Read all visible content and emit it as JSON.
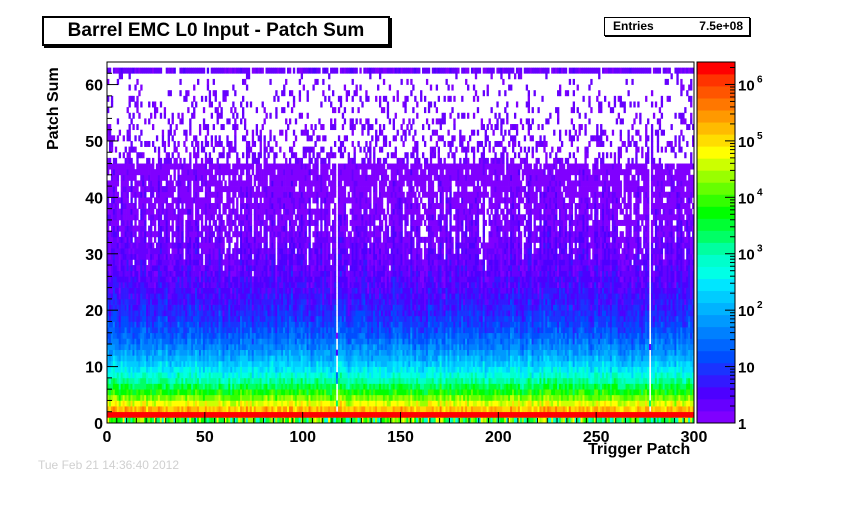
{
  "title": "Barrel EMC L0 Input - Patch Sum",
  "stats": {
    "label": "Entries",
    "value": "7.5e+08"
  },
  "footer_text": "Tue Feb 21 14:36:40 2012",
  "chart_data": {
    "type": "heatmap",
    "title": "Barrel EMC L0 Input - Patch Sum",
    "xlabel": "Trigger Patch",
    "ylabel": "Patch Sum",
    "xlim": [
      0,
      300
    ],
    "ylim": [
      0,
      64
    ],
    "x_ticks": [
      "0",
      "50",
      "100",
      "150",
      "200",
      "250",
      "300"
    ],
    "y_ticks": [
      "0",
      "10",
      "20",
      "30",
      "40",
      "50",
      "60"
    ],
    "z_scale": "log",
    "z_ticks": [
      {
        "base": "1",
        "exp": ""
      },
      {
        "base": "10",
        "exp": ""
      },
      {
        "base": "10",
        "exp": "2"
      },
      {
        "base": "10",
        "exp": "3"
      },
      {
        "base": "10",
        "exp": "4"
      },
      {
        "base": "10",
        "exp": "5"
      },
      {
        "base": "10",
        "exp": "6"
      }
    ],
    "zlim": [
      1,
      2500000
    ],
    "palette": [
      "#8000ff",
      "#6600ff",
      "#4d00ff",
      "#3319ff",
      "#1a33ff",
      "#004dff",
      "#0066ff",
      "#0080ff",
      "#0099ff",
      "#00b3ff",
      "#00ccff",
      "#00e6ff",
      "#00ffe6",
      "#00ffcc",
      "#00ffa0",
      "#00ff66",
      "#00ff33",
      "#00ff00",
      "#33ff00",
      "#66ff00",
      "#99ff00",
      "#ccff00",
      "#ffff00",
      "#ffdd00",
      "#ffbb00",
      "#ff9900",
      "#ff7700",
      "#ff5500",
      "#ff3300",
      "#ff0000"
    ],
    "profile": "log10 counts fall from ~6.4 at patch sum 1 to ~0 near patch sum 45; sparse counts up to 62; row 62 populated across all patches",
    "grid": false,
    "legend": "color scale right"
  }
}
